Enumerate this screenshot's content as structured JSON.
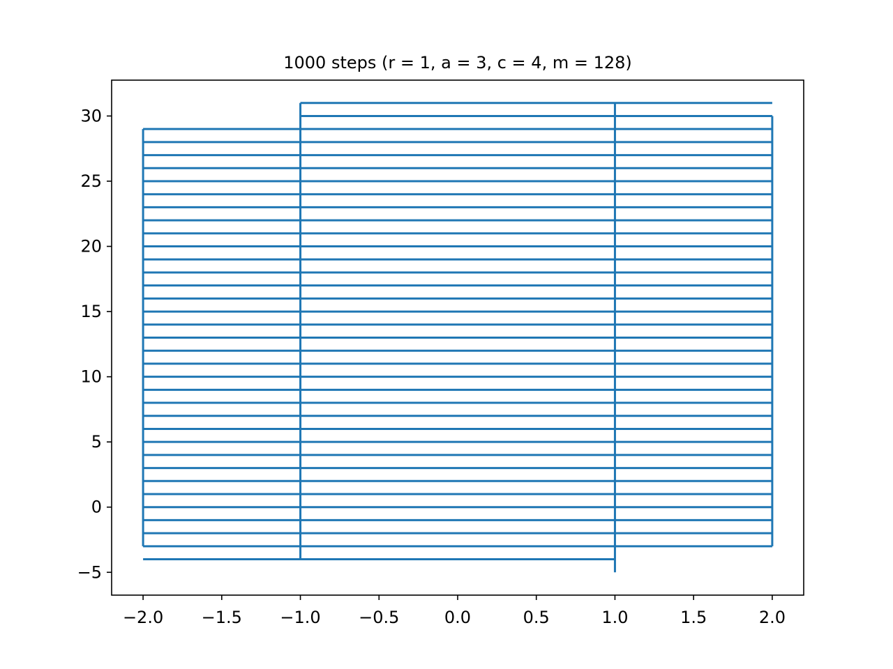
{
  "chart_data": {
    "type": "line",
    "title": "1000 steps (r = 1, a = 3, c = 4, m = 128)",
    "xlabel": "",
    "ylabel": "",
    "xlim": [
      -2.2,
      2.2
    ],
    "ylim": [
      -6.75,
      32.75
    ],
    "grid": false,
    "x_ticks": [
      -2.0,
      -1.5,
      -1.0,
      -0.5,
      0.0,
      0.5,
      1.0,
      1.5,
      2.0
    ],
    "x_tick_labels": [
      "−2.0",
      "−1.5",
      "−1.0",
      "−0.5",
      "0.0",
      "0.5",
      "1.0",
      "1.5",
      "2.0"
    ],
    "y_ticks": [
      -5,
      0,
      5,
      10,
      15,
      20,
      25,
      30
    ],
    "y_tick_labels": [
      "−5",
      "0",
      "5",
      "10",
      "15",
      "20",
      "25",
      "30"
    ],
    "series": [
      {
        "color": "#1f77b4",
        "vertical_segments": [
          {
            "x": -2,
            "y_from": -3,
            "y_to": 29
          },
          {
            "x": -1,
            "y_from": -4,
            "y_to": 31
          },
          {
            "x": 1,
            "y_from": -5,
            "y_to": 31
          },
          {
            "x": 2,
            "y_from": -3,
            "y_to": 30
          }
        ],
        "horizontal_segments": [
          {
            "y": 31,
            "x_from": -1,
            "x_to": 2
          },
          {
            "y": 30,
            "x_from": -1,
            "x_to": 2
          },
          {
            "y": 29,
            "x_from": -2,
            "x_to": 2
          },
          {
            "y": 28,
            "x_from": -2,
            "x_to": 2
          },
          {
            "y": 27,
            "x_from": -2,
            "x_to": 2
          },
          {
            "y": 26,
            "x_from": -2,
            "x_to": 2
          },
          {
            "y": 25,
            "x_from": -2,
            "x_to": 2
          },
          {
            "y": 24,
            "x_from": -2,
            "x_to": 2
          },
          {
            "y": 23,
            "x_from": -2,
            "x_to": 2
          },
          {
            "y": 22,
            "x_from": -2,
            "x_to": 2
          },
          {
            "y": 21,
            "x_from": -2,
            "x_to": 2
          },
          {
            "y": 20,
            "x_from": -2,
            "x_to": 2
          },
          {
            "y": 19,
            "x_from": -2,
            "x_to": 2
          },
          {
            "y": 18,
            "x_from": -2,
            "x_to": 2
          },
          {
            "y": 17,
            "x_from": -2,
            "x_to": 2
          },
          {
            "y": 16,
            "x_from": -2,
            "x_to": 2
          },
          {
            "y": 15,
            "x_from": -2,
            "x_to": 2
          },
          {
            "y": 14,
            "x_from": -2,
            "x_to": 2
          },
          {
            "y": 13,
            "x_from": -2,
            "x_to": 2
          },
          {
            "y": 12,
            "x_from": -2,
            "x_to": 2
          },
          {
            "y": 11,
            "x_from": -2,
            "x_to": 2
          },
          {
            "y": 10,
            "x_from": -2,
            "x_to": 2
          },
          {
            "y": 9,
            "x_from": -2,
            "x_to": 2
          },
          {
            "y": 8,
            "x_from": -2,
            "x_to": 2
          },
          {
            "y": 7,
            "x_from": -2,
            "x_to": 2
          },
          {
            "y": 6,
            "x_from": -2,
            "x_to": 2
          },
          {
            "y": 5,
            "x_from": -2,
            "x_to": 2
          },
          {
            "y": 4,
            "x_from": -2,
            "x_to": 2
          },
          {
            "y": 3,
            "x_from": -2,
            "x_to": 2
          },
          {
            "y": 2,
            "x_from": -2,
            "x_to": 2
          },
          {
            "y": 1,
            "x_from": -2,
            "x_to": 2
          },
          {
            "y": 0,
            "x_from": -2,
            "x_to": 2
          },
          {
            "y": -1,
            "x_from": -2,
            "x_to": 2
          },
          {
            "y": -2,
            "x_from": -2,
            "x_to": 2
          },
          {
            "y": -3,
            "x_from": -2,
            "x_to": 2
          },
          {
            "y": -4,
            "x_from": -2,
            "x_to": 1
          }
        ]
      }
    ]
  }
}
